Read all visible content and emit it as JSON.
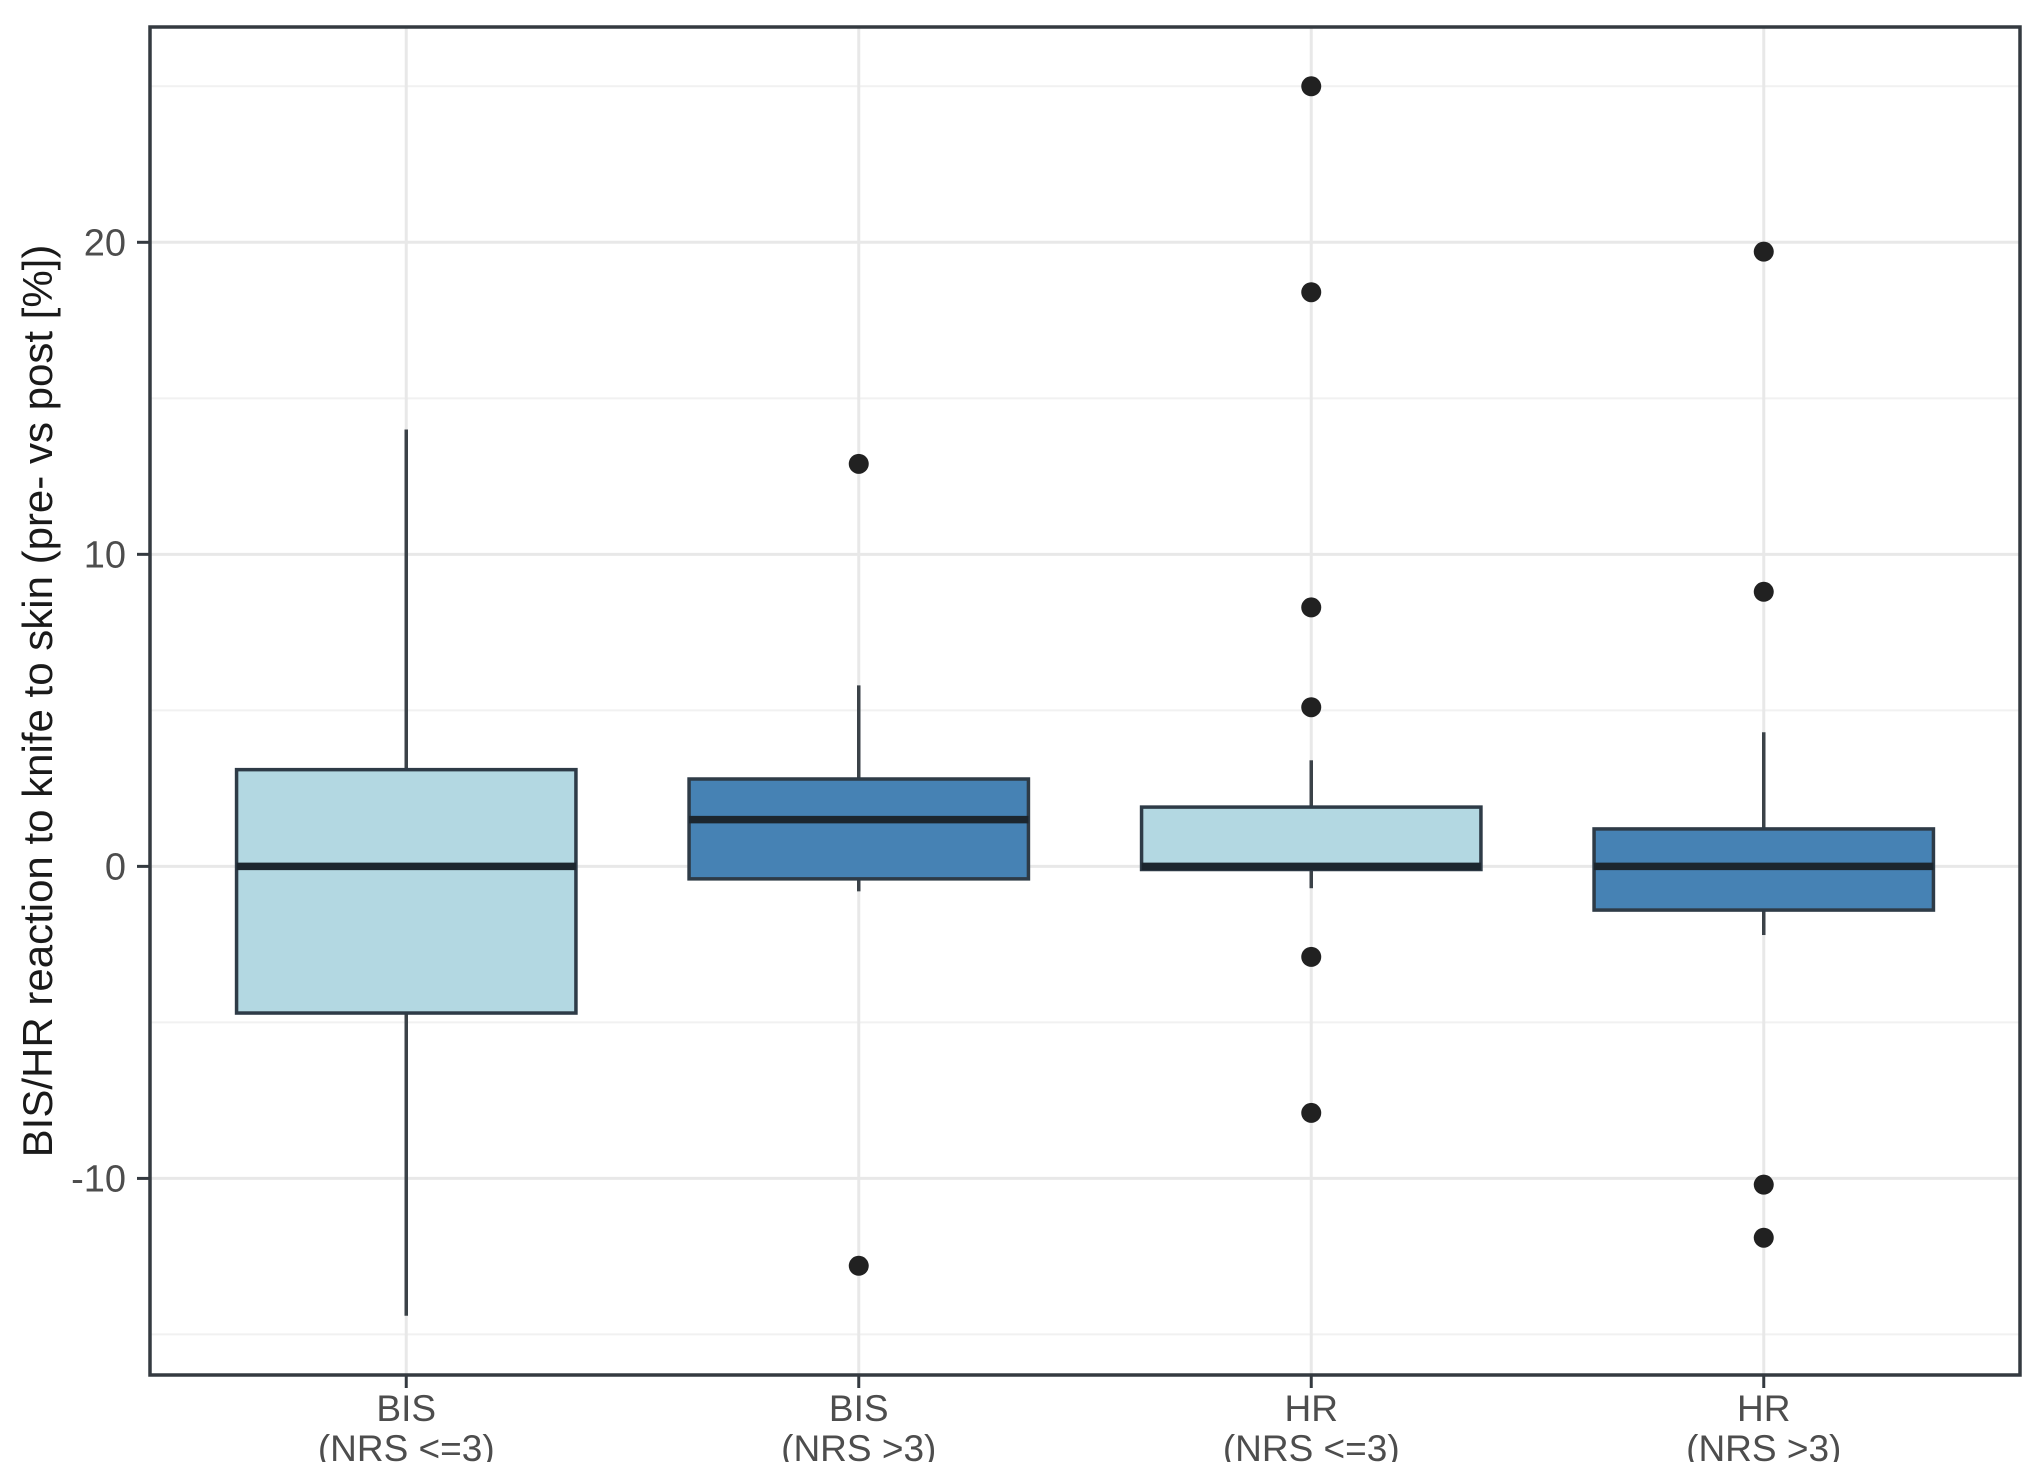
{
  "chart_data": {
    "type": "boxplot",
    "title": "",
    "xlabel": "",
    "ylabel": "BIS/HR reaction to knife to skin (pre- vs post [%])",
    "ylim": [
      -16.3,
      26.9
    ],
    "yticks": [
      20,
      10,
      0,
      -10
    ],
    "ytick_labels": [
      "20",
      "10",
      "0",
      "-10"
    ],
    "minor_gridlines": [
      25,
      15,
      5,
      -5,
      -15
    ],
    "grid": "major-and-minor-horizontal, major-vertical-at-categories",
    "legend": "none",
    "categories": [
      {
        "line1": "BIS",
        "line2": "(NRS <=3)"
      },
      {
        "line1": "BIS",
        "line2": "(NRS >3)"
      },
      {
        "line1": "HR",
        "line2": "(NRS <=3)"
      },
      {
        "line1": "HR",
        "line2": "(NRS >3)"
      }
    ],
    "boxes": [
      {
        "name": "BIS (NRS <=3)",
        "fill_key": "light",
        "whisker_low": -14.4,
        "q1": -4.7,
        "median": 0.0,
        "q3": 3.1,
        "whisker_high": 14.0,
        "outliers": []
      },
      {
        "name": "BIS (NRS >3)",
        "fill_key": "dark",
        "whisker_low": -0.8,
        "q1": -0.4,
        "median": 1.5,
        "q3": 2.8,
        "whisker_high": 5.8,
        "outliers": [
          12.9,
          -12.8
        ]
      },
      {
        "name": "HR (NRS <=3)",
        "fill_key": "light",
        "whisker_low": -0.7,
        "q1": -0.1,
        "median": 0.0,
        "q3": 1.9,
        "whisker_high": 3.4,
        "outliers": [
          25.0,
          18.4,
          8.3,
          5.1,
          -2.9,
          -7.9
        ]
      },
      {
        "name": "HR (NRS >3)",
        "fill_key": "dark",
        "whisker_low": -2.2,
        "q1": -1.4,
        "median": 0.0,
        "q3": 1.2,
        "whisker_high": 4.3,
        "outliers": [
          19.7,
          8.8,
          -10.2,
          -11.9
        ]
      }
    ],
    "colors": {
      "light": "#b3d8e2",
      "dark": "#4682b4",
      "box_border": "#2e3b47",
      "median": "#1c262e",
      "whisker": "#3b4248",
      "outlier": "#212121",
      "panel_border": "#343a40",
      "grid_major": "#e8e8e8",
      "grid_minor": "#f1f1f1",
      "tick_label": "#4d4d4d",
      "axis_title": "#1a1a1a",
      "panel_bg": "#ffffff"
    }
  }
}
